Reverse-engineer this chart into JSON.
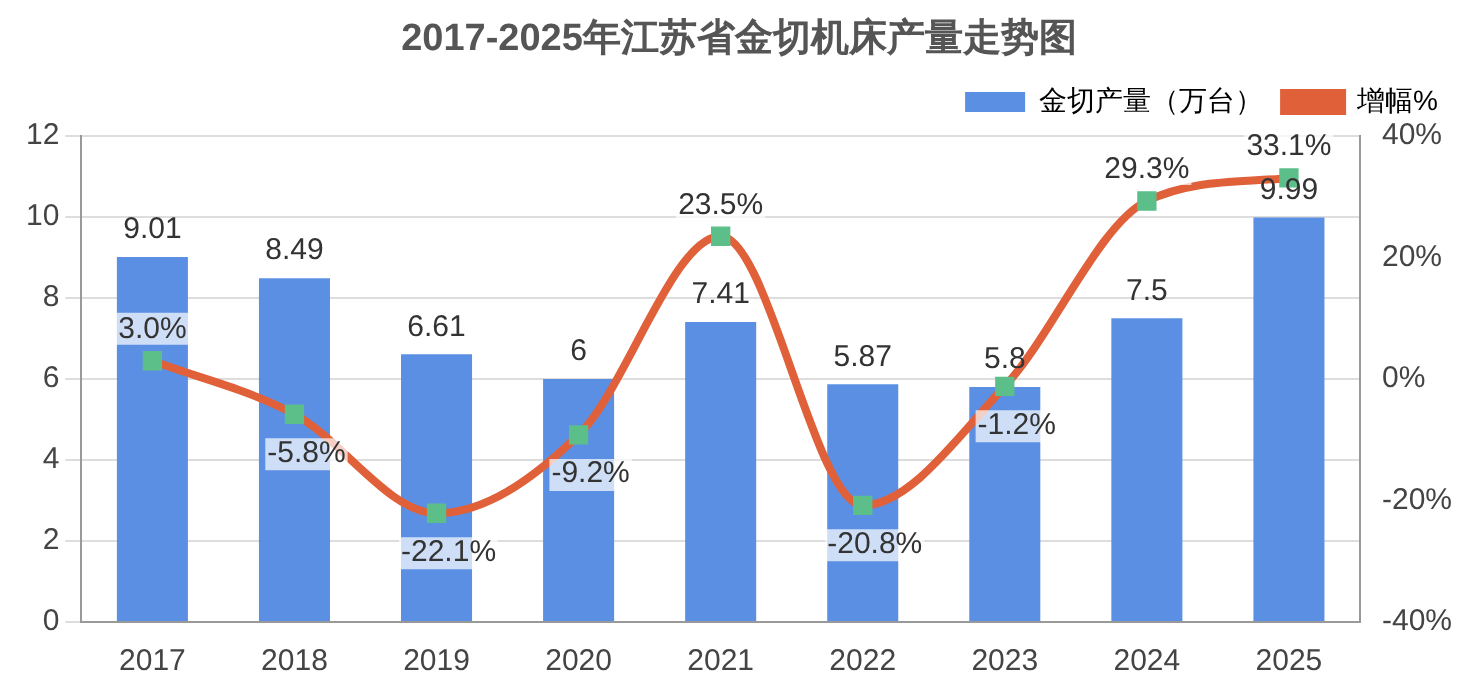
{
  "chart_data": {
    "type": "bar",
    "title": "2017-2025年江苏省金切机床产量走势图",
    "categories": [
      "2017",
      "2018",
      "2019",
      "2020",
      "2021",
      "2022",
      "2023",
      "2024",
      "2025"
    ],
    "series": [
      {
        "name": "金切产量（万台）",
        "color": "#5b8fe3",
        "values": [
          9.01,
          8.49,
          6.61,
          6,
          7.41,
          5.87,
          5.8,
          7.5,
          9.99
        ],
        "value_labels": [
          "9.01",
          "8.49",
          "6.61",
          "6",
          "7.41",
          "5.87",
          "5.8",
          "7.5",
          "9.99"
        ]
      },
      {
        "name": "增幅%",
        "type": "line",
        "axis": "y2",
        "color": "#e0603a",
        "values": [
          3.0,
          -5.8,
          -22.1,
          -9.2,
          23.5,
          -20.8,
          -1.2,
          29.3,
          33.1
        ],
        "value_labels": [
          "3.0%",
          "-5.8%",
          "-22.1%",
          "-9.2%",
          "23.5%",
          "-20.8%",
          "-1.2%",
          "29.3%",
          "33.1%"
        ]
      }
    ],
    "marker": "square",
    "ylim": [
      0,
      12
    ],
    "yticks": [
      0,
      2,
      4,
      6,
      8,
      10,
      12
    ],
    "y2lim": [
      -40,
      40
    ],
    "y2ticks": [
      {
        "value": -40,
        "label": "-40%"
      },
      {
        "value": -20,
        "label": "-20%"
      },
      {
        "value": 0,
        "label": "0%"
      },
      {
        "value": 20,
        "label": "20%"
      },
      {
        "value": 40,
        "label": "40%"
      }
    ],
    "grid": "y",
    "legend": "top right"
  }
}
